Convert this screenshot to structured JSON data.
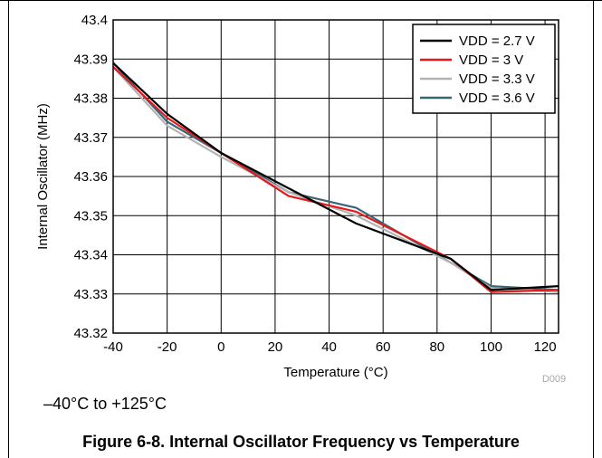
{
  "chart_data": {
    "type": "line",
    "xlabel": "Temperature (°C)",
    "ylabel": "Internal Oscillator (MHz)",
    "xlim": [
      -40,
      125
    ],
    "ylim": [
      43.32,
      43.4
    ],
    "xticks": [
      "-40",
      "-20",
      "0",
      "20",
      "40",
      "60",
      "80",
      "100",
      "120"
    ],
    "yticks": [
      "43.32",
      "43.33",
      "43.34",
      "43.35",
      "43.36",
      "43.37",
      "43.38",
      "43.39",
      "43.4"
    ],
    "grid": true,
    "legend_position": "top-right",
    "watermark": "D009",
    "series": [
      {
        "name": "VDD = 2.7 V",
        "color": "#000000",
        "x": [
          -40,
          -20,
          0,
          25,
          50,
          85,
          100,
          125
        ],
        "y": [
          43.389,
          43.376,
          43.366,
          43.357,
          43.348,
          43.339,
          43.331,
          43.332
        ]
      },
      {
        "name": "VDD = 3 V",
        "color": "#e41a1c",
        "x": [
          -40,
          -20,
          0,
          25,
          50,
          85,
          100,
          125
        ],
        "y": [
          43.388,
          43.375,
          43.366,
          43.355,
          43.351,
          43.339,
          43.3305,
          43.331
        ]
      },
      {
        "name": "VDD = 3.3 V",
        "color": "#b3b3b3",
        "x": [
          -40,
          -20,
          0,
          25,
          50,
          85,
          100,
          125
        ],
        "y": [
          43.388,
          43.373,
          43.365,
          43.356,
          43.35,
          43.338,
          43.3315,
          43.3305
        ]
      },
      {
        "name": "VDD = 3.6 V",
        "color": "#3b6577",
        "x": [
          -40,
          -20,
          0,
          25,
          50,
          85,
          100,
          125
        ],
        "y": [
          43.389,
          43.374,
          43.366,
          43.356,
          43.352,
          43.338,
          43.332,
          43.331
        ]
      }
    ]
  },
  "condition_note": "–40°C to +125°C",
  "figure_caption": "Figure 6-8. Internal Oscillator Frequency vs Temperature"
}
